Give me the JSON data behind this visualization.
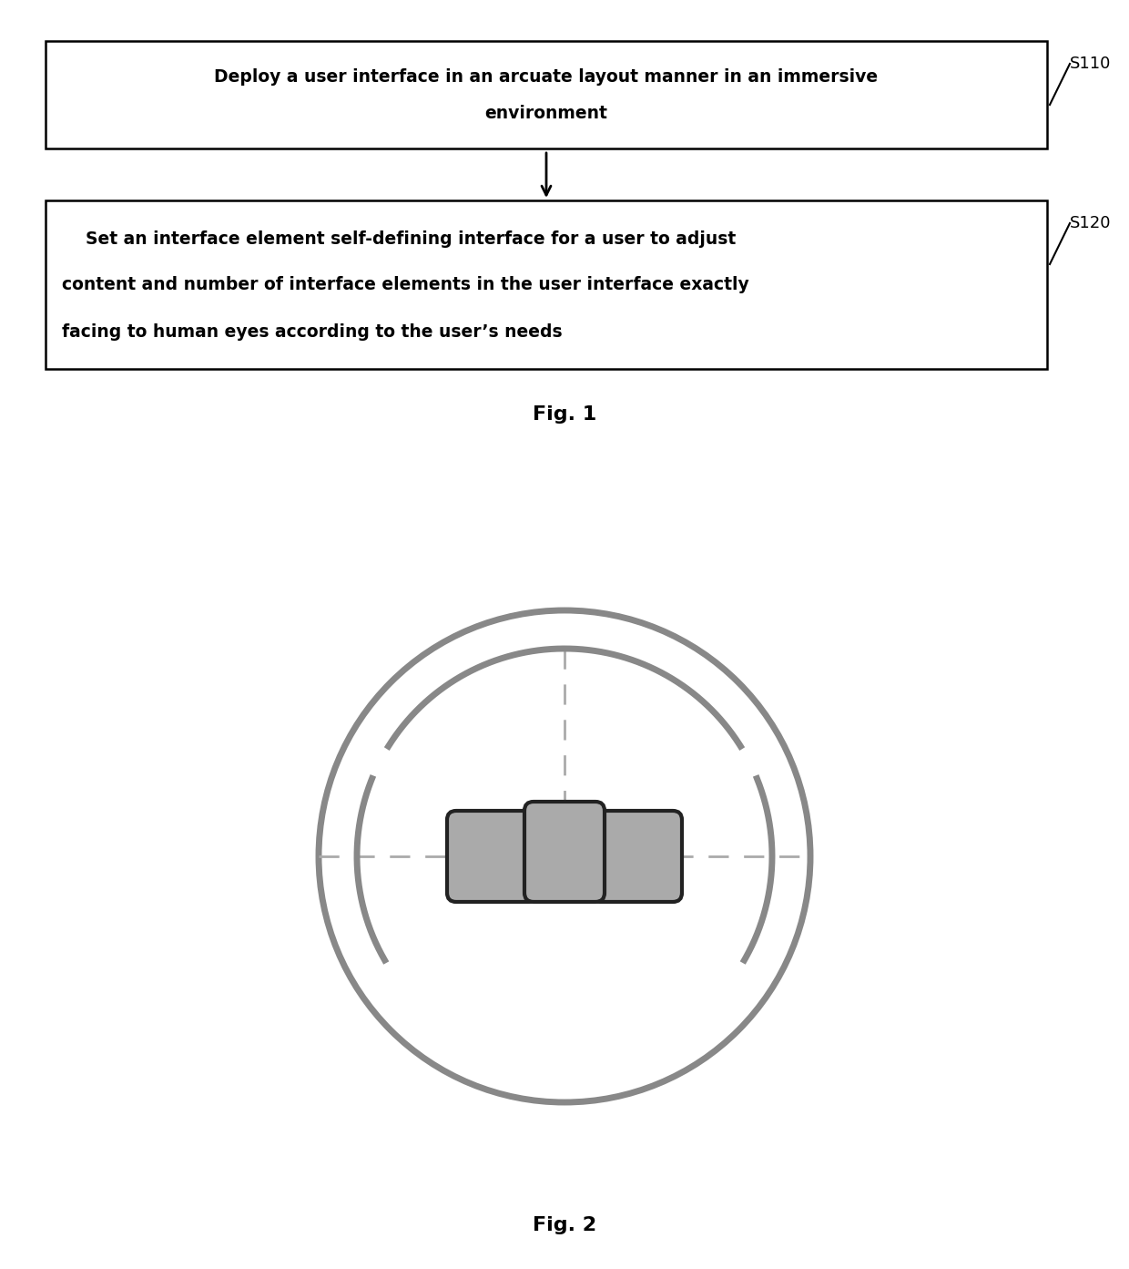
{
  "fig_width": 12.4,
  "fig_height": 13.93,
  "bg_color": "#ffffff",
  "box1_text_line1": "Deploy a user interface in an arcuate layout manner in an immersive",
  "box1_text_line2": "environment",
  "box1_label": "S110",
  "box2_text_line1": "    Set an interface element self-defining interface for a user to adjust",
  "box2_text_line2": "content and number of interface elements in the user interface exactly",
  "box2_text_line3": "facing to human eyes according to the user’s needs",
  "box2_label": "S120",
  "fig1_label": "Fig. 1",
  "fig2_label": "Fig. 2",
  "box_outline_color": "#000000",
  "text_color": "#000000",
  "arrow_color": "#000000",
  "gray_color": "#888888",
  "dashed_color": "#aaaaaa",
  "element_gray": "#aaaaaa",
  "element_dark": "#222222"
}
